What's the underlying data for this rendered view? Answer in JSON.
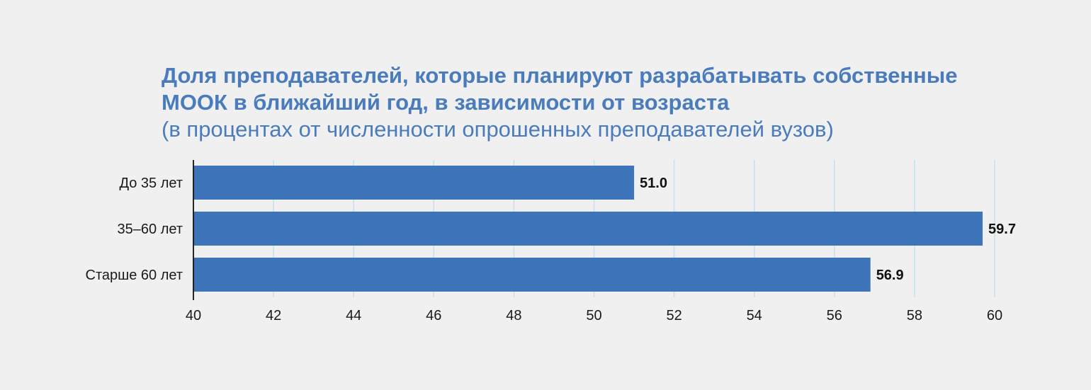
{
  "chart_data": {
    "type": "bar",
    "orientation": "horizontal",
    "title": "Доля преподавателей, которые планируют разрабатывать собственные МООК в ближайший год, в зависимости от возраста",
    "title_lines": [
      "Доля преподавателей, которые планируют разрабатывать собственные",
      "МООК в ближайший год, в зависимости от возраста"
    ],
    "subtitle": "(в процентах от численности опрошенных преподавателей вузов)",
    "categories": [
      "До 35 лет",
      "35–60 лет",
      "Старше 60 лет"
    ],
    "values": [
      51.0,
      59.7,
      56.9
    ],
    "value_labels": [
      "51.0",
      "59.7",
      "56.9"
    ],
    "xlim": [
      40,
      60
    ],
    "xticks": [
      "40",
      "42",
      "44",
      "46",
      "48",
      "50",
      "52",
      "54",
      "56",
      "58",
      "60"
    ],
    "grid": "vertical",
    "bar_color": "#3d74ba",
    "grid_color": "#bfe3f2",
    "title_color": "#4a7cbd"
  }
}
